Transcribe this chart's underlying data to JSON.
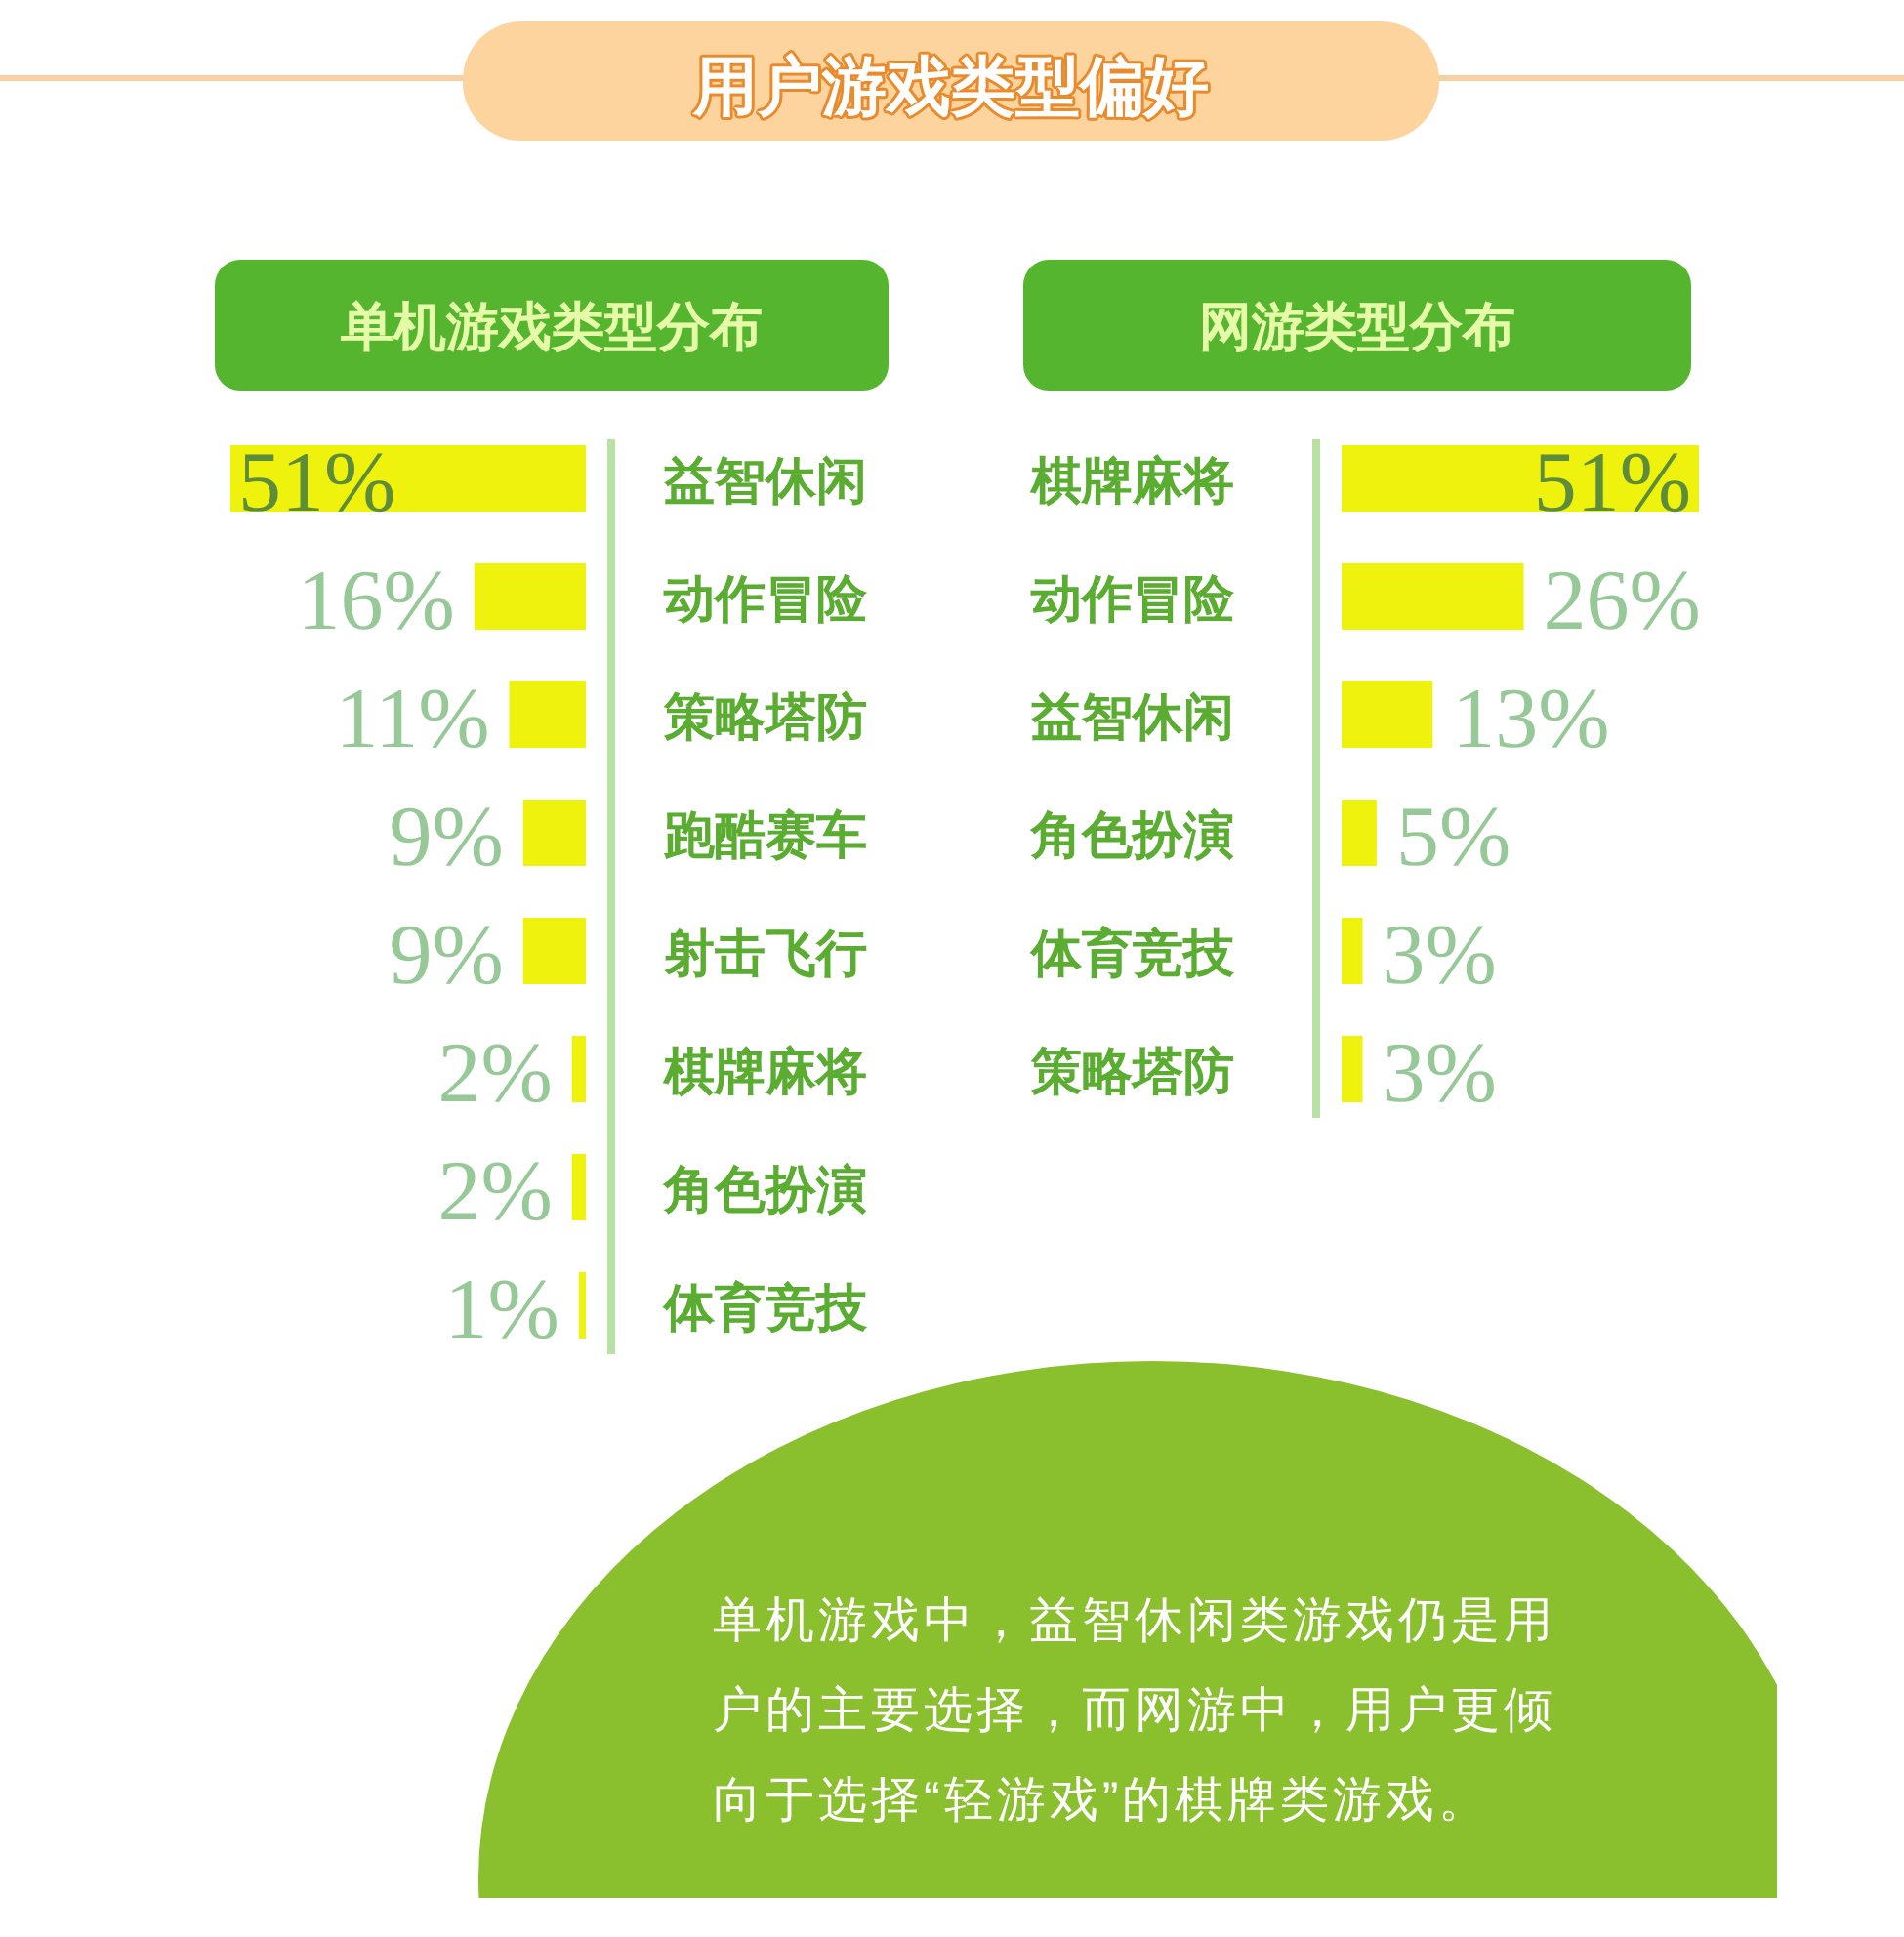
{
  "chart_data": [
    {
      "type": "other",
      "title": "用户游戏类型偏好"
    },
    {
      "type": "bar",
      "orientation": "horizontal",
      "title": "单机游戏类型分布",
      "categories": [
        "益智休闲",
        "动作冒险",
        "策略塔防",
        "跑酷赛车",
        "射击飞行",
        "棋牌麻将",
        "角色扮演",
        "体育竞技"
      ],
      "values": [
        51,
        16,
        11,
        9,
        9,
        2,
        2,
        1
      ],
      "value_labels": [
        "51%",
        "16%",
        "11%",
        "9%",
        "9%",
        "2%",
        "2%",
        "1%"
      ],
      "color": "#eff20d"
    },
    {
      "type": "bar",
      "orientation": "horizontal",
      "title": "网游类型分布",
      "categories": [
        "棋牌麻将",
        "动作冒险",
        "益智休闲",
        "角色扮演",
        "体育竞技",
        "策略塔防"
      ],
      "values": [
        51,
        26,
        13,
        5,
        3,
        3
      ],
      "value_labels": [
        "51%",
        "26%",
        "13%",
        "5%",
        "3%",
        "3%"
      ],
      "color": "#eff20d"
    },
    {
      "type": "other",
      "annotations": [
        "单机游戏中，益智休闲类游戏仍是用户的主要选择，而网游中，用户更倾向于选择“轻游戏”的棋牌类游戏。"
      ]
    }
  ]
}
